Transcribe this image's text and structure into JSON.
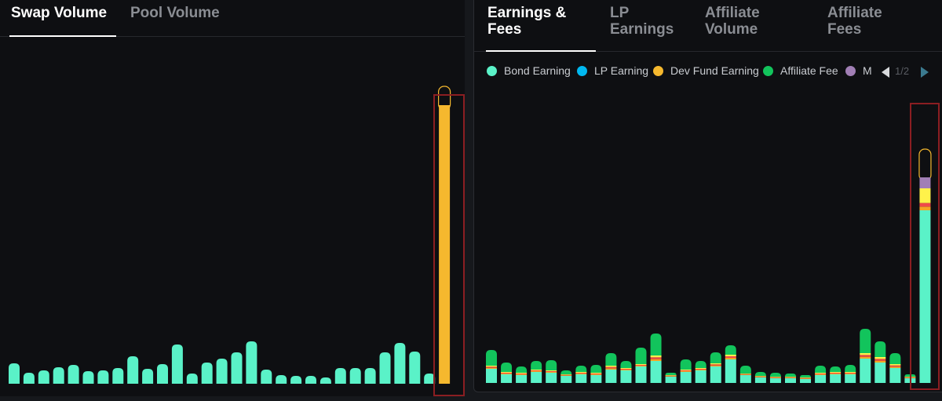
{
  "left_tabs": [
    {
      "label": "Swap Volume",
      "active": true
    },
    {
      "label": "Pool Volume",
      "active": false
    }
  ],
  "right_tabs": [
    {
      "label": "Earnings &\nFees",
      "active": true
    },
    {
      "label": "LP\nEarnings",
      "active": false
    },
    {
      "label": "Affiliate\nVolume",
      "active": false
    },
    {
      "label": "Affiliate\nFees",
      "active": false
    }
  ],
  "legend": {
    "items": [
      {
        "label": "Bond Earning",
        "color": "#5af2c8"
      },
      {
        "label": "LP Earning",
        "color": "#00b8f0"
      },
      {
        "label": "Dev Fund Earning",
        "color": "#f5b82e"
      },
      {
        "label": "Affiliate Fee",
        "color": "#12c45c"
      },
      {
        "label": "M",
        "color": "#a17fb5"
      }
    ],
    "pager": "1/2"
  },
  "colors": {
    "swap_bar": "#5af2c8",
    "highlight_bar": "#f5b82e",
    "bond": "#5af2c8",
    "lp_stripe_orange": "#f5a524",
    "lp_stripe_red": "#f04a4a",
    "lp_stripe_yellow": "#fff24a",
    "purple": "#a17fb5",
    "affiliate": "#12c45c",
    "highlight_border": "#8b1e22"
  },
  "chart_data": [
    {
      "type": "bar",
      "title": "Swap Volume",
      "values": [
        26,
        14,
        17,
        21,
        24,
        16,
        17,
        20,
        35,
        19,
        25,
        50,
        13,
        27,
        32,
        40,
        54,
        18,
        11,
        10,
        10,
        8,
        20,
        20,
        20,
        40,
        52,
        41,
        13,
        355
      ],
      "ylim": [
        0,
        390
      ]
    },
    {
      "type": "bar",
      "title": "Earnings & Fees",
      "stacked": true,
      "series": [
        {
          "name": "Bond Earning",
          "values": [
            18,
            11,
            10,
            14,
            13,
            9,
            11,
            10,
            17,
            16,
            21,
            28,
            8,
            14,
            16,
            21,
            30,
            10,
            7,
            6,
            6,
            5,
            10,
            11,
            11,
            31,
            26,
            19,
            6,
            220
          ]
        },
        {
          "name": "LP Earning",
          "values": [
            4,
            3,
            3,
            3,
            3,
            2,
            3,
            3,
            5,
            3,
            3,
            7,
            2,
            3,
            3,
            4,
            6,
            2,
            2,
            2,
            2,
            2,
            3,
            3,
            3,
            7,
            7,
            5,
            2,
            14
          ]
        },
        {
          "name": "Dev Fund Earning",
          "values": [
            0,
            0,
            0,
            0,
            0,
            0,
            0,
            0,
            0,
            0,
            0,
            0,
            0,
            0,
            0,
            0,
            0,
            0,
            0,
            0,
            0,
            0,
            0,
            0,
            0,
            0,
            0,
            0,
            0,
            14
          ]
        },
        {
          "name": "Affiliate Fee",
          "values": [
            20,
            12,
            8,
            11,
            13,
            5,
            8,
            10,
            16,
            9,
            21,
            28,
            3,
            13,
            9,
            14,
            12,
            10,
            5,
            5,
            4,
            3,
            9,
            7,
            9,
            31,
            20,
            14,
            3,
            0
          ]
        },
        {
          "name": "M",
          "values": [
            0,
            0,
            0,
            0,
            0,
            0,
            0,
            0,
            0,
            0,
            0,
            0,
            0,
            0,
            0,
            0,
            0,
            0,
            0,
            0,
            0,
            0,
            0,
            0,
            0,
            0,
            0,
            0,
            0,
            14
          ]
        }
      ],
      "ylim": [
        0,
        350
      ]
    }
  ]
}
